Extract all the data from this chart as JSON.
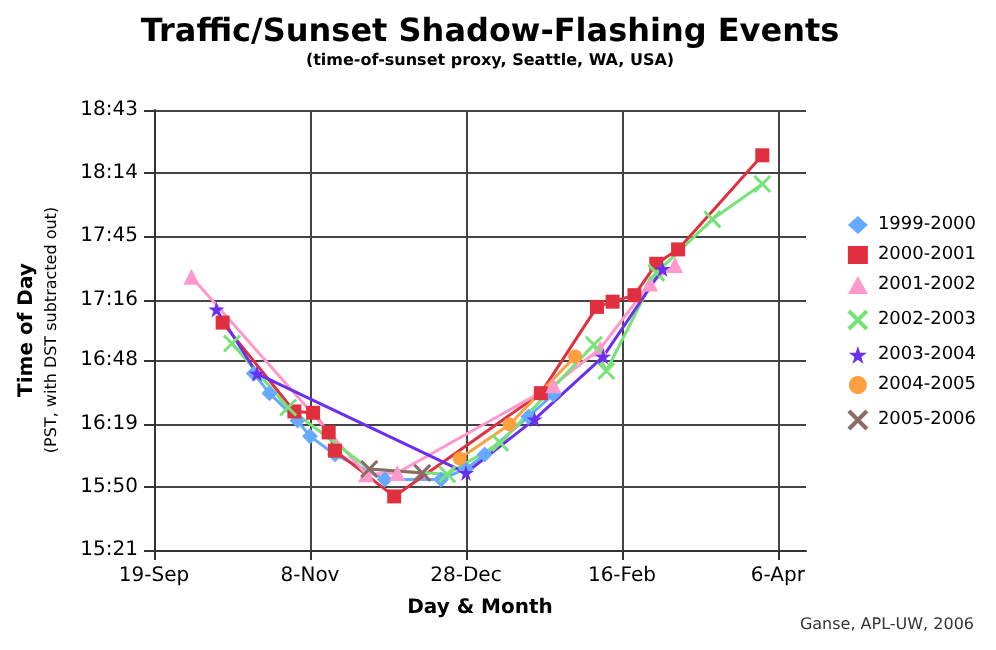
{
  "chart_data": {
    "type": "line",
    "title": "Traffic/Sunset Shadow-Flashing Events",
    "subtitle": "(time-of-sunset proxy, Seattle, WA, USA)",
    "xlabel": "Day & Month",
    "ylabel": "Time of Day\n(PST, with DST subtracted out)",
    "annotations": [
      "Ganse, APL-UW, 2006"
    ],
    "xlim": [
      "2003-09-19",
      "2004-04-15"
    ],
    "xticks": [
      {
        "value": "2003-09-19",
        "label": "19-Sep"
      },
      {
        "value": "2003-11-08",
        "label": "8-Nov"
      },
      {
        "value": "2003-12-28",
        "label": "28-Dec"
      },
      {
        "value": "2004-02-16",
        "label": "16-Feb"
      },
      {
        "value": "2004-04-06",
        "label": "6-Apr"
      }
    ],
    "ylim": [
      15.35,
      18.7167
    ],
    "yticks": [
      {
        "value": 15.35,
        "label": "15:21"
      },
      {
        "value": 15.8333,
        "label": "15:50"
      },
      {
        "value": 16.3167,
        "label": "16:19"
      },
      {
        "value": 16.8,
        "label": "16:48"
      },
      {
        "value": 17.2667,
        "label": "17:16"
      },
      {
        "value": 17.75,
        "label": "17:45"
      },
      {
        "value": 18.2333,
        "label": "18:14"
      },
      {
        "value": 18.7167,
        "label": "18:43"
      }
    ],
    "grid": true,
    "legend": "right",
    "line_style": "solid",
    "series": [
      {
        "name": "1999-2000",
        "color": "#66aaff",
        "marker": "diamond",
        "x": [
          "2003-10-21",
          "2003-10-26",
          "2003-11-04",
          "2003-11-08",
          "2003-11-16",
          "2003-12-02",
          "2003-12-20",
          "2003-12-28",
          "2004-01-03",
          "2004-01-17",
          "2004-01-25"
        ],
        "values": [
          16.7,
          16.55,
          16.34,
          16.22,
          16.08,
          15.89,
          15.89,
          15.97,
          16.08,
          16.37,
          16.54
        ]
      },
      {
        "name": "2000-2001",
        "color": "#e03040",
        "marker": "square",
        "x": [
          "2003-10-11",
          "2003-11-03",
          "2003-11-09",
          "2003-11-14",
          "2003-11-16",
          "2003-12-05",
          "2004-01-21",
          "2004-02-08",
          "2004-02-13",
          "2004-02-20",
          "2004-02-27",
          "2004-03-05",
          "2004-04-01"
        ],
        "values": [
          17.09,
          16.41,
          16.4,
          16.25,
          16.11,
          15.76,
          16.55,
          17.21,
          17.25,
          17.3,
          17.54,
          17.65,
          18.37
        ]
      },
      {
        "name": "2001-2002",
        "color": "#ff99cc",
        "marker": "triangle",
        "x": [
          "2003-10-01",
          "2003-11-26",
          "2003-12-06",
          "2004-01-25",
          "2004-02-09",
          "2004-02-25",
          "2004-03-04"
        ],
        "values": [
          17.44,
          15.93,
          15.94,
          16.61,
          16.89,
          17.39,
          17.53
        ]
      },
      {
        "name": "2002-2003",
        "color": "#77e377",
        "marker": "cross",
        "x": [
          "2003-10-14",
          "2003-11-01",
          "2003-11-27",
          "2003-12-22",
          "2004-01-08",
          "2004-02-07",
          "2004-02-11",
          "2004-02-27",
          "2004-03-16",
          "2004-04-01"
        ],
        "values": [
          16.93,
          16.44,
          15.97,
          15.93,
          16.17,
          16.92,
          16.72,
          17.47,
          17.88,
          18.15
        ]
      },
      {
        "name": "2003-2004",
        "color": "#6a2ff0",
        "marker": "star",
        "x": [
          "2003-10-09",
          "2003-10-22",
          "2003-12-28",
          "2004-01-19",
          "2004-02-10",
          "2004-02-29"
        ],
        "values": [
          17.19,
          16.7,
          15.94,
          16.35,
          16.83,
          17.5
        ]
      },
      {
        "name": "2004-2005",
        "color": "#ffa040",
        "marker": "circle",
        "x": [
          "2003-12-26",
          "2004-01-11",
          "2004-02-01"
        ],
        "values": [
          16.05,
          16.31,
          16.83
        ]
      },
      {
        "name": "2005-2006",
        "color": "#8b6a6a",
        "marker": "cross",
        "x": [
          "2003-11-27",
          "2003-12-14"
        ],
        "values": [
          15.97,
          15.94
        ]
      }
    ]
  }
}
